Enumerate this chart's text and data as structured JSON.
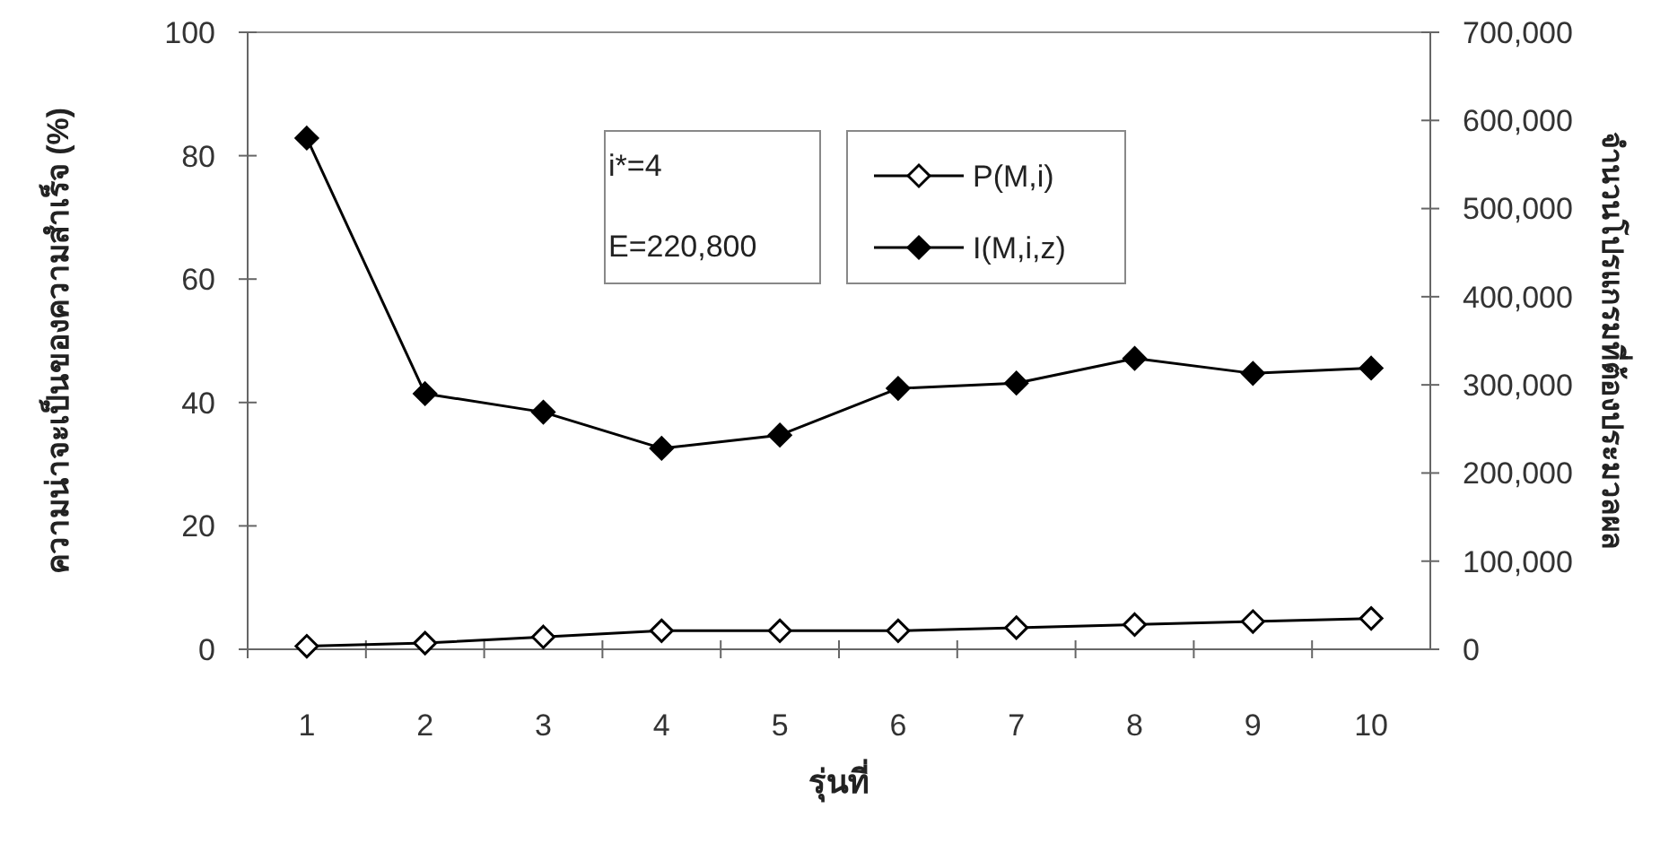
{
  "chart_data": {
    "type": "line",
    "xlabel": "รุ่นที่",
    "ylabel": "ความน่าจะเป็นของความสำเร็จ (%)",
    "y2label": "จำนวนโปรแกรมที่ต้องประมวลผล",
    "categories": [
      "1",
      "2",
      "3",
      "4",
      "5",
      "6",
      "7",
      "8",
      "9",
      "10"
    ],
    "series": [
      {
        "name": "P(M,i)",
        "color": "#000000",
        "marker": "diamond",
        "values": [
          0.5,
          1,
          2,
          3,
          3,
          3,
          3.5,
          4,
          4.5,
          5
        ]
      },
      {
        "name": "I(M,i,z)",
        "color": "#000000",
        "marker": "diamond",
        "axis": "y2",
        "values": [
          580000,
          290000,
          269000,
          228000,
          243000,
          296000,
          302000,
          330000,
          313000,
          319000
        ]
      }
    ],
    "ylim": [
      0,
      100
    ],
    "yticks": [
      0,
      20,
      40,
      60,
      80,
      100
    ],
    "y2lim": [
      0,
      700000
    ],
    "y2ticks": [
      {
        "value": 0,
        "label": "0"
      },
      {
        "value": 100000,
        "label": "100,000"
      },
      {
        "value": 200000,
        "label": "200,000"
      },
      {
        "value": 300000,
        "label": "300,000"
      },
      {
        "value": 400000,
        "label": "400,000"
      },
      {
        "value": 500000,
        "label": "500,000"
      },
      {
        "value": 600000,
        "label": "600,000"
      },
      {
        "value": 700000,
        "label": "700,000"
      }
    ],
    "annotations": [
      "i*=4",
      "E=220,800"
    ],
    "legend": "top right",
    "grid": false
  }
}
